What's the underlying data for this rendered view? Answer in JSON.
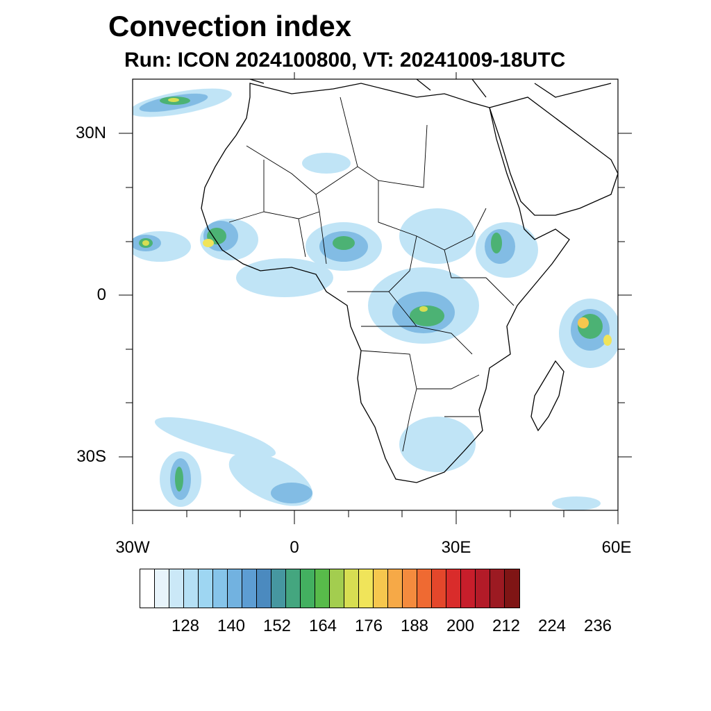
{
  "title": "Convection index",
  "subtitle": "Run: ICON 2024100800,  VT: 20241009-18UTC",
  "map": {
    "extent": {
      "lon": [
        -30,
        60
      ],
      "lat": [
        -40,
        40
      ]
    },
    "lat_labels": [
      "30N",
      "0",
      "30S"
    ],
    "lon_labels": [
      "30W",
      "0",
      "30E",
      "60E"
    ]
  },
  "colorbar": {
    "colors": [
      "#ffffff",
      "#e8f4fb",
      "#cbe8f7",
      "#b5e0f5",
      "#9ed6f2",
      "#86c4ea",
      "#72b2e0",
      "#5d9dd3",
      "#4b8abf",
      "#4697a0",
      "#44a67f",
      "#43b060",
      "#58bb4a",
      "#a3cd4f",
      "#d7de52",
      "#f0e45a",
      "#f6c74e",
      "#f6a947",
      "#f48b3e",
      "#ef6a32",
      "#e4472b",
      "#d92c2b",
      "#c71e2b",
      "#b31b28",
      "#9c1a22",
      "#7f1515"
    ],
    "labels": [
      "128",
      "140",
      "152",
      "164",
      "176",
      "188",
      "200",
      "212",
      "224",
      "236"
    ]
  },
  "chart_data": {
    "type": "heatmap",
    "title": "Convection index",
    "subtitle": "Run: ICON 2024100800,  VT: 20241009-18UTC",
    "x_ticks": [
      "30W",
      "0",
      "30E",
      "60E"
    ],
    "y_ticks": [
      "30N",
      "0",
      "30S"
    ],
    "colorbar_ticks": [
      128,
      140,
      152,
      164,
      176,
      188,
      200,
      212,
      224,
      236
    ],
    "regions": [
      {
        "lon": -16,
        "lat": 10,
        "peak": 190
      },
      {
        "lon": -27,
        "lat": 10,
        "peak": 180
      },
      {
        "lon": 8,
        "lat": 9,
        "peak": 168
      },
      {
        "lon": 26,
        "lat": -3,
        "peak": 176
      },
      {
        "lon": 38,
        "lat": 9,
        "peak": 178
      },
      {
        "lon": 55,
        "lat": -6,
        "peak": 200
      },
      {
        "lon": -20,
        "lat": 36,
        "peak": 178
      },
      {
        "lon": -13,
        "lat": -37,
        "peak": 170
      },
      {
        "lon": 5,
        "lat": 4,
        "peak": 152
      },
      {
        "lon": 28,
        "lat": -25,
        "peak": 150
      }
    ]
  }
}
